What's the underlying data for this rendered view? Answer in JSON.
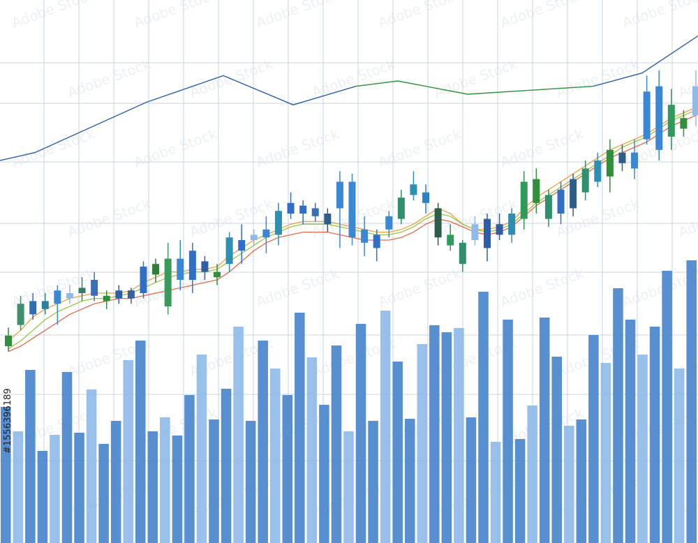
{
  "watermark": "Adobe Stock",
  "stock_id": "#1556396189",
  "colors": {
    "grid": "#c8d3e4",
    "volume_dark": "#4a86cc",
    "volume_light": "#8fbbe8",
    "upper_line_left": "#2e5ea8",
    "upper_line_right": "#2f8f3a",
    "ma_red": "#e05a3c",
    "ma_orange": "#e8962f",
    "ma_green": "#8fbf2e"
  },
  "chart_data": {
    "type": "candlestick",
    "title": "",
    "xlabel": "",
    "ylabel": "",
    "grid": true,
    "price_range": [
      0,
      100
    ],
    "candles": [
      {
        "open": 30,
        "close": 34,
        "high": 37,
        "low": 28,
        "color": "#2f8f3a"
      },
      {
        "open": 38,
        "close": 46,
        "high": 49,
        "low": 36,
        "color": "#3d8f6e"
      },
      {
        "open": 42,
        "close": 47,
        "high": 50,
        "low": 40,
        "color": "#2f6fb0"
      },
      {
        "open": 44,
        "close": 47,
        "high": 50,
        "low": 42,
        "color": "#2f7f9a"
      },
      {
        "open": 46,
        "close": 51,
        "high": 53,
        "low": 38,
        "color": "#3a88d4"
      },
      {
        "open": 48,
        "close": 50,
        "high": 53,
        "low": 46,
        "color": "#8fbbe8"
      },
      {
        "open": 50,
        "close": 52,
        "high": 56,
        "low": 47,
        "color": "#2f7f6a"
      },
      {
        "open": 49,
        "close": 55,
        "high": 58,
        "low": 47,
        "color": "#3a6fb8"
      },
      {
        "open": 47,
        "close": 49,
        "high": 51,
        "low": 44,
        "color": "#2f8f3a"
      },
      {
        "open": 48,
        "close": 51,
        "high": 53,
        "low": 46,
        "color": "#2e5ea8"
      },
      {
        "open": 48,
        "close": 51,
        "high": 52,
        "low": 46,
        "color": "#3a5fa0"
      },
      {
        "open": 50,
        "close": 60,
        "high": 62,
        "low": 48,
        "color": "#2f6fc8"
      },
      {
        "open": 57,
        "close": 61,
        "high": 63,
        "low": 54,
        "color": "#2f7f3a"
      },
      {
        "open": 45,
        "close": 63,
        "high": 69,
        "low": 42,
        "color": "#3a9a5a"
      },
      {
        "open": 55,
        "close": 63,
        "high": 70,
        "low": 51,
        "color": "#3a88d4"
      },
      {
        "open": 55,
        "close": 66,
        "high": 69,
        "low": 50,
        "color": "#2f6fc8"
      },
      {
        "open": 58,
        "close": 62,
        "high": 64,
        "low": 55,
        "color": "#2e5ea8"
      },
      {
        "open": 56,
        "close": 58,
        "high": 61,
        "low": 53,
        "color": "#2f8f3a"
      },
      {
        "open": 61,
        "close": 71,
        "high": 73,
        "low": 58,
        "color": "#2f8fb0"
      },
      {
        "open": 66,
        "close": 70,
        "high": 76,
        "low": 61,
        "color": "#2f6fc8"
      },
      {
        "open": 70,
        "close": 72,
        "high": 74,
        "low": 68,
        "color": "#8fbbe8"
      },
      {
        "open": 71,
        "close": 74,
        "high": 79,
        "low": 65,
        "color": "#3a88d4"
      },
      {
        "open": 72,
        "close": 81,
        "high": 84,
        "low": 68,
        "color": "#2f8fb0"
      },
      {
        "open": 80,
        "close": 84,
        "high": 88,
        "low": 78,
        "color": "#2f6fc8"
      },
      {
        "open": 80,
        "close": 83,
        "high": 85,
        "low": 76,
        "color": "#2f6fc8"
      },
      {
        "open": 79,
        "close": 82,
        "high": 84,
        "low": 77,
        "color": "#3a6fb8"
      },
      {
        "open": 76,
        "close": 80,
        "high": 82,
        "low": 73,
        "color": "#2e5e88"
      },
      {
        "open": 82,
        "close": 92,
        "high": 96,
        "low": 67,
        "color": "#3a88d4"
      },
      {
        "open": 71,
        "close": 92,
        "high": 95,
        "low": 68,
        "color": "#3a88d4"
      },
      {
        "open": 69,
        "close": 74,
        "high": 79,
        "low": 64,
        "color": "#3a88d4"
      },
      {
        "open": 67,
        "close": 72,
        "high": 74,
        "low": 62,
        "color": "#2f6fc8"
      },
      {
        "open": 74,
        "close": 79,
        "high": 81,
        "low": 71,
        "color": "#3a88d4"
      },
      {
        "open": 78,
        "close": 86,
        "high": 89,
        "low": 76,
        "color": "#2f8f6e"
      },
      {
        "open": 87,
        "close": 91,
        "high": 96,
        "low": 85,
        "color": "#2f8fb0"
      },
      {
        "open": 84,
        "close": 88,
        "high": 91,
        "low": 80,
        "color": "#2f7fc8"
      },
      {
        "open": 71,
        "close": 82,
        "high": 84,
        "low": 68,
        "color": "#2e5e4a"
      },
      {
        "open": 68,
        "close": 72,
        "high": 76,
        "low": 66,
        "color": "#2f9a5a"
      },
      {
        "open": 61,
        "close": 69,
        "high": 70,
        "low": 58,
        "color": "#2f8f6e"
      },
      {
        "open": 70,
        "close": 76,
        "high": 79,
        "low": 68,
        "color": "#8fbbe8"
      },
      {
        "open": 67,
        "close": 78,
        "high": 80,
        "low": 62,
        "color": "#2e5ea8"
      },
      {
        "open": 72,
        "close": 76,
        "high": 80,
        "low": 70,
        "color": "#2e5ea8"
      },
      {
        "open": 72,
        "close": 80,
        "high": 82,
        "low": 69,
        "color": "#2f8fb0"
      },
      {
        "open": 78,
        "close": 92,
        "high": 96,
        "low": 74,
        "color": "#2f9a5a"
      },
      {
        "open": 84,
        "close": 93,
        "high": 97,
        "low": 80,
        "color": "#2f8f3a"
      },
      {
        "open": 78,
        "close": 87,
        "high": 89,
        "low": 75,
        "color": "#2f8f6e"
      },
      {
        "open": 80,
        "close": 89,
        "high": 92,
        "low": 76,
        "color": "#2f6fc8"
      },
      {
        "open": 82,
        "close": 93,
        "high": 95,
        "low": 79,
        "color": "#2e5e88"
      },
      {
        "open": 88,
        "close": 97,
        "high": 100,
        "low": 85,
        "color": "#2f8f6e"
      },
      {
        "open": 92,
        "close": 100,
        "high": 103,
        "low": 90,
        "color": "#2f8fb0"
      },
      {
        "open": 94,
        "close": 104,
        "high": 108,
        "low": 88,
        "color": "#2f8f3a"
      },
      {
        "open": 99,
        "close": 103,
        "high": 106,
        "low": 96,
        "color": "#2e5e88"
      },
      {
        "open": 97,
        "close": 103,
        "high": 108,
        "low": 93,
        "color": "#3a88d4"
      },
      {
        "open": 108,
        "close": 126,
        "high": 132,
        "low": 106,
        "color": "#3a88d4"
      },
      {
        "open": 104,
        "close": 128,
        "high": 134,
        "low": 100,
        "color": "#3a88d4"
      },
      {
        "open": 109,
        "close": 121,
        "high": 127,
        "low": 104,
        "color": "#2f9a5a"
      },
      {
        "open": 112,
        "close": 116,
        "high": 119,
        "low": 109,
        "color": "#2f8f3a"
      },
      {
        "open": 117,
        "close": 128,
        "high": 134,
        "low": 113,
        "color": "#8fbbe8"
      }
    ],
    "moving_averages": [
      {
        "color": "#e8962f",
        "values": [
          32,
          36,
          41,
          44,
          46,
          48,
          49,
          50,
          50,
          50,
          51,
          54,
          56,
          58,
          58,
          59,
          59,
          60,
          64,
          67,
          70,
          72,
          74,
          76,
          77,
          77,
          77,
          76,
          75,
          74,
          73,
          73,
          74,
          76,
          79,
          82,
          80,
          76,
          74,
          74,
          75,
          77,
          82,
          86,
          89,
          92,
          95,
          98,
          101,
          104,
          106,
          108,
          110,
          113,
          116,
          118,
          120
        ]
      },
      {
        "color": "#e05a3c",
        "values": [
          28,
          30,
          33,
          36,
          39,
          42,
          44,
          46,
          47,
          48,
          48,
          49,
          50,
          51,
          52,
          53,
          54,
          55,
          58,
          62,
          66,
          69,
          71,
          72,
          73,
          73,
          73,
          72,
          71,
          70,
          70,
          70,
          71,
          73,
          76,
          78,
          77,
          75,
          73,
          72,
          73,
          75,
          79,
          83,
          86,
          89,
          92,
          95,
          98,
          101,
          103,
          105,
          107,
          110,
          113,
          115,
          117
        ]
      },
      {
        "color": "#8fbf2e",
        "values": [
          29,
          32,
          36,
          40,
          43,
          45,
          47,
          48,
          48,
          49,
          50,
          52,
          54,
          56,
          57,
          58,
          58,
          59,
          62,
          65,
          68,
          71,
          73,
          75,
          76,
          76,
          76,
          75,
          74,
          73,
          72,
          72,
          73,
          75,
          78,
          80,
          79,
          76,
          74,
          73,
          74,
          76,
          80,
          84,
          87,
          90,
          93,
          96,
          99,
          102,
          105,
          107,
          109,
          112,
          115,
          117,
          119
        ]
      }
    ],
    "trend_line": {
      "x": [
        0,
        5,
        21,
        32,
        42,
        51,
        57,
        67,
        85,
        92,
        100
      ],
      "y": [
        100,
        103,
        122,
        132,
        121,
        128,
        130,
        125,
        128,
        133,
        147
      ]
    },
    "volume": {
      "range": [
        0,
        400
      ],
      "values": [
        195,
        160,
        248,
        132,
        155,
        245,
        158,
        220,
        142,
        175,
        262,
        290,
        160,
        180,
        154,
        212,
        270,
        177,
        221,
        310,
        175,
        290,
        250,
        212,
        330,
        266,
        198,
        283,
        160,
        314,
        175,
        333,
        260,
        178,
        285,
        312,
        302,
        308,
        180,
        360,
        145,
        320,
        149,
        197,
        323,
        267,
        168,
        177,
        298,
        258,
        365,
        320,
        270,
        310,
        390,
        250,
        405
      ]
    }
  }
}
